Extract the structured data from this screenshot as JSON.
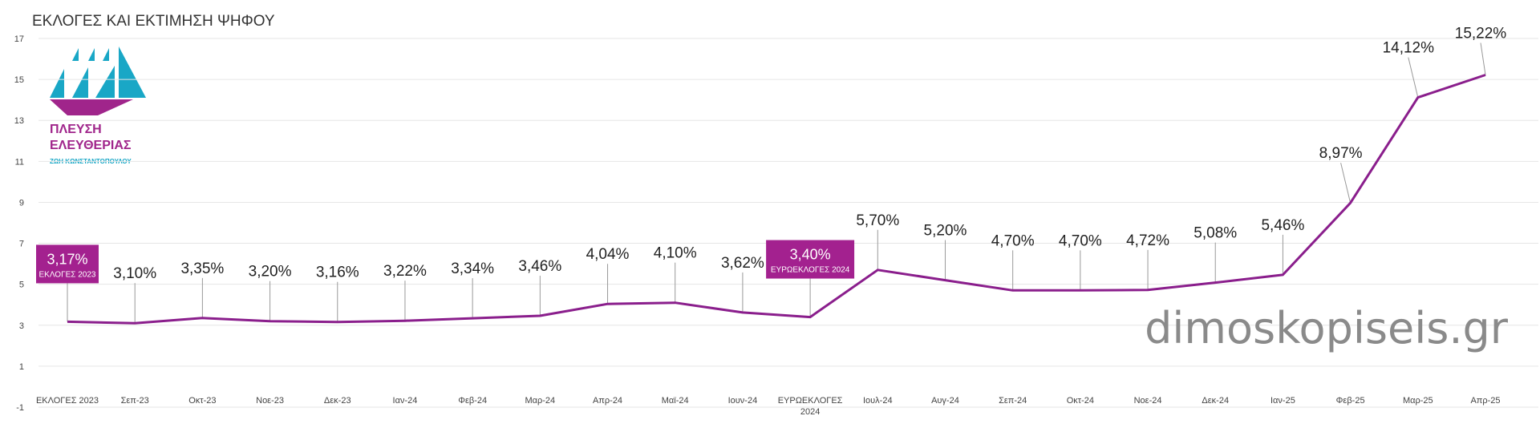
{
  "title": "ΕΚΛΟΓΕΣ ΚΑΙ ΕΚΤΙΜΗΣΗ  ΨΗΦΟΥ",
  "watermark": "dimoskopiseis.gr",
  "logo": {
    "line1": "ΠΛΕΥΣΗ",
    "line2": "ΕΛΕΥΘΕΡΙΑΣ",
    "line3": "ΖΩΗ ΚΩΝΣΤΑΝΤΟΠΟΥΛΟΥ",
    "colors": {
      "sails": "#19a7c6",
      "hull": "#a0258b",
      "text_primary": "#a0258b",
      "text_secondary": "#19a7c6"
    }
  },
  "colors": {
    "line": "#8a1e8c",
    "callout_box": "#a3218f",
    "grid": "#e6e6e6"
  },
  "chart_data": {
    "type": "line",
    "title": "ΕΚΛΟΓΕΣ ΚΑΙ ΕΚΤΙΜΗΣΗ  ΨΗΦΟΥ",
    "xlabel": "",
    "ylabel": "",
    "ylim": [
      -1,
      17
    ],
    "yticks": [
      "-1",
      "1",
      "3",
      "5",
      "7",
      "9",
      "11",
      "13",
      "15",
      "17"
    ],
    "grid": true,
    "categories": [
      [
        "ΕΚΛΟΓΕΣ 2023"
      ],
      [
        "Σεπ-23"
      ],
      [
        "Οκτ-23"
      ],
      [
        "Νοε-23"
      ],
      [
        "Δεκ-23"
      ],
      [
        "Ιαν-24"
      ],
      [
        "Φεβ-24"
      ],
      [
        "Μαρ-24"
      ],
      [
        "Απρ-24"
      ],
      [
        "Μαϊ-24"
      ],
      [
        "Ιουν-24"
      ],
      [
        "ΕΥΡΩΕΚΛΟΓΕΣ",
        "2024"
      ],
      [
        "Ιουλ-24"
      ],
      [
        "Αυγ-24"
      ],
      [
        "Σεπ-24"
      ],
      [
        "Οκτ-24"
      ],
      [
        "Νοε-24"
      ],
      [
        "Δεκ-24"
      ],
      [
        "Ιαν-25"
      ],
      [
        "Φεβ-25"
      ],
      [
        "Μαρ-25"
      ],
      [
        "Απρ-25"
      ]
    ],
    "values": [
      3.17,
      3.1,
      3.35,
      3.2,
      3.16,
      3.22,
      3.34,
      3.46,
      4.04,
      4.1,
      3.62,
      3.4,
      5.7,
      5.2,
      4.7,
      4.7,
      4.72,
      5.08,
      5.46,
      8.97,
      14.12,
      15.22
    ],
    "labels": [
      "3,17%",
      "3,10%",
      "3,35%",
      "3,20%",
      "3,16%",
      "3,22%",
      "3,34%",
      "3,46%",
      "4,04%",
      "4,10%",
      "3,62%",
      "3,40%",
      "5,70%",
      "5,20%",
      "4,70%",
      "4,70%",
      "4,72%",
      "5,08%",
      "5,46%",
      "8,97%",
      "14,12%",
      "15,22%"
    ],
    "callouts": [
      {
        "index": 0,
        "value_label": "3,17%",
        "caption": "ΕΚΛΟΓΕΣ 2023"
      },
      {
        "index": 11,
        "value_label": "3,40%",
        "caption": "ΕΥΡΩΕΚΛΟΓΕΣ 2024"
      }
    ]
  }
}
